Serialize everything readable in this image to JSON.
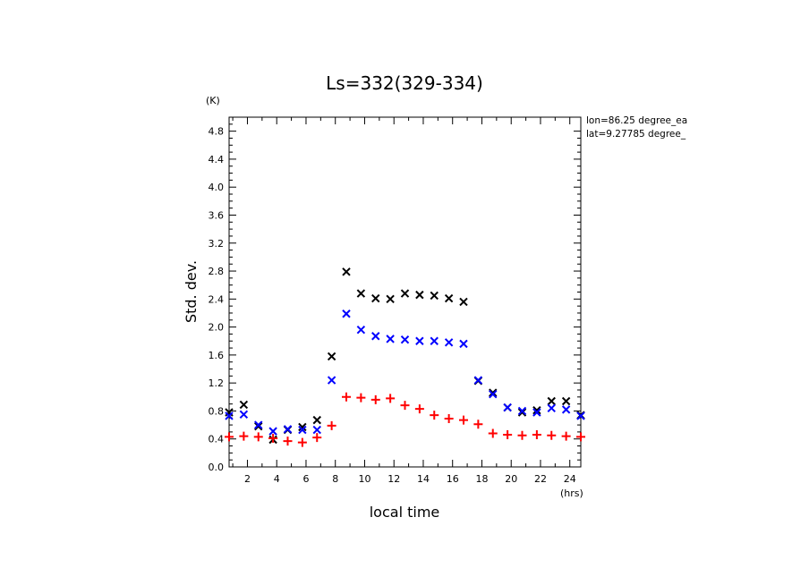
{
  "chart_data": {
    "type": "scatter",
    "title": "Ls=332(329-334)",
    "xlabel": "local time",
    "xunit": "(hrs)",
    "ylabel": "Std. dev.",
    "yunit": "(K)",
    "annotations": [
      "lon=86.25 degree_ea",
      "lat=9.27785 degree_"
    ],
    "xlim": [
      0.75,
      24.75
    ],
    "ylim": [
      0.0,
      5.0
    ],
    "xticks": [
      2,
      4,
      6,
      8,
      10,
      12,
      14,
      16,
      18,
      20,
      22,
      24
    ],
    "xtick_labels": [
      "2",
      "4",
      "6",
      "8",
      "10",
      "12",
      "14",
      "16",
      "18",
      "20",
      "22",
      "24"
    ],
    "yticks": [
      0.0,
      0.4,
      0.8,
      1.2,
      1.6,
      2.0,
      2.4,
      2.8,
      3.2,
      3.6,
      4.0,
      4.4,
      4.8
    ],
    "ytick_labels": [
      "0.0",
      "0.4",
      "0.8",
      "1.2",
      "1.6",
      "2.0",
      "2.4",
      "2.8",
      "3.2",
      "3.6",
      "4.0",
      "4.4",
      "4.8"
    ],
    "x": [
      0.75,
      1.75,
      2.75,
      3.75,
      4.75,
      5.75,
      6.75,
      7.75,
      8.75,
      9.75,
      10.75,
      11.75,
      12.75,
      13.75,
      14.75,
      15.75,
      16.75,
      17.75,
      18.75,
      19.75,
      20.75,
      21.75,
      22.75,
      23.75,
      24.75
    ],
    "series": [
      {
        "marker": "x",
        "color": "#000000",
        "values": [
          0.78,
          0.89,
          0.58,
          0.39,
          0.53,
          0.57,
          0.67,
          1.58,
          2.79,
          2.48,
          2.41,
          2.4,
          2.48,
          2.46,
          2.45,
          2.41,
          2.36,
          1.23,
          1.06,
          0.85,
          0.78,
          0.81,
          0.94,
          0.94,
          0.74
        ]
      },
      {
        "marker": "x",
        "color": "#0000ff",
        "values": [
          0.73,
          0.75,
          0.6,
          0.51,
          0.54,
          0.53,
          0.53,
          1.24,
          2.19,
          1.96,
          1.87,
          1.83,
          1.82,
          1.8,
          1.8,
          1.78,
          1.76,
          1.24,
          1.04,
          0.85,
          0.8,
          0.78,
          0.84,
          0.82,
          0.73
        ]
      },
      {
        "marker": "+",
        "color": "#ff0000",
        "values": [
          0.43,
          0.44,
          0.43,
          0.41,
          0.37,
          0.35,
          0.42,
          0.59,
          1.0,
          0.99,
          0.96,
          0.98,
          0.88,
          0.83,
          0.74,
          0.69,
          0.67,
          0.61,
          0.48,
          0.46,
          0.45,
          0.46,
          0.45,
          0.44,
          0.43
        ]
      }
    ]
  }
}
